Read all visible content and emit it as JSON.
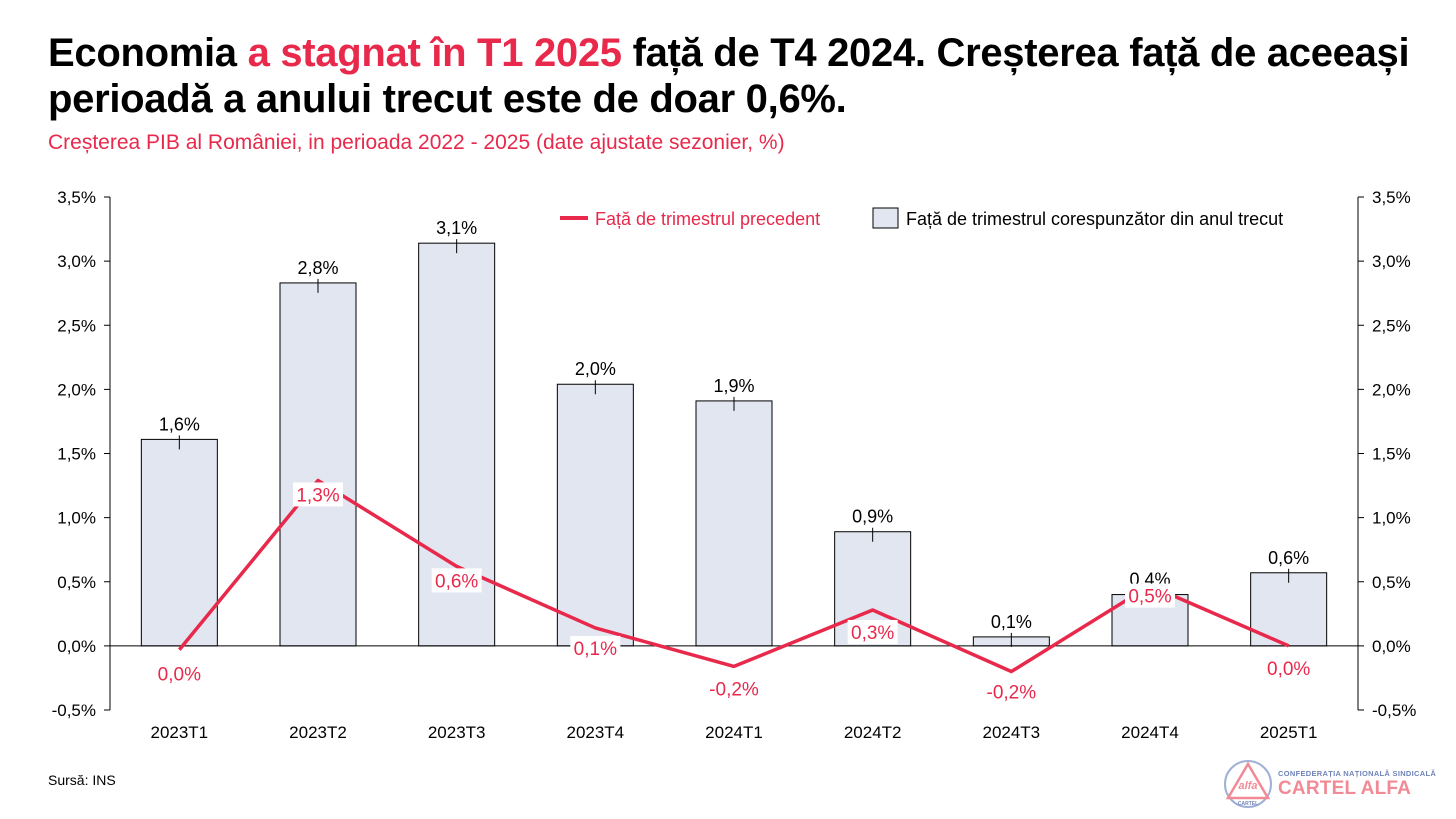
{
  "title": {
    "part1": "Economia ",
    "highlight": "a stagnat în T1 2025",
    "part2": " față de T4 2024. Creșterea față de aceeași perioadă a anului trecut este de doar 0,6%."
  },
  "subtitle": "Creșterea PIB al României, in perioada 2022 - 2025 (date ajustate sezonier, %)",
  "source": "Sursă: INS",
  "logo": {
    "small_text": "CONFEDERAȚIA NAȚIONALĂ SINDICALĂ",
    "big_text": "CARTEL ALFA",
    "emblem_text": "alfa",
    "emblem_sub": "CARTEL"
  },
  "colors": {
    "accent": "#e8294c",
    "bar_fill": "#e1e6f0",
    "bar_stroke": "#000000"
  },
  "chart_data": {
    "type": "bar",
    "categories": [
      "2023T1",
      "2023T2",
      "2023T3",
      "2023T4",
      "2024T1",
      "2024T2",
      "2024T3",
      "2024T4",
      "2025T1"
    ],
    "ylim": [
      -0.5,
      3.5
    ],
    "yticks": [
      "-0,5%",
      "0,0%",
      "0,5%",
      "1,0%",
      "1,5%",
      "2,0%",
      "2,5%",
      "3,0%",
      "3,5%"
    ],
    "legend_position": "top-right",
    "series": [
      {
        "name": "Față de trimestrul corespunzător din anul trecut",
        "type": "bar",
        "values": [
          1.61,
          2.83,
          3.14,
          2.04,
          1.91,
          0.89,
          0.07,
          0.4,
          0.57
        ],
        "labels": [
          "1,6%",
          "2,8%",
          "3,1%",
          "2,0%",
          "1,9%",
          "0,9%",
          "0,1%",
          "0,4%",
          "0,6%"
        ]
      },
      {
        "name": "Față de trimestrul precedent",
        "type": "line",
        "values": [
          -0.03,
          1.29,
          0.62,
          0.14,
          -0.16,
          0.28,
          -0.2,
          0.47,
          0.0
        ],
        "labels": [
          "0,0%",
          "1,3%",
          "0,6%",
          "0,1%",
          "-0,2%",
          "0,3%",
          "-0,2%",
          "0,5%",
          "0,0%"
        ]
      }
    ]
  }
}
